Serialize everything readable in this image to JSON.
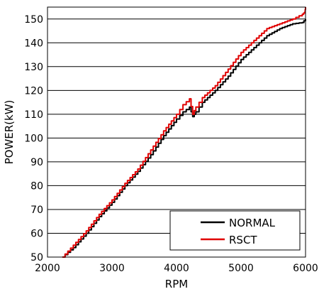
{
  "chart_data": {
    "type": "line",
    "title": "",
    "xlabel": "RPM",
    "ylabel": "POWER(kW)",
    "xlim": [
      2000,
      6000
    ],
    "ylim": [
      50,
      155
    ],
    "xticks": [
      2000,
      3000,
      4000,
      5000,
      6000
    ],
    "yticks": [
      50,
      60,
      70,
      80,
      90,
      100,
      110,
      120,
      130,
      140,
      150
    ],
    "grid": "horizontal",
    "legend_position": "bottom-right",
    "series": [
      {
        "name": "NORMAL",
        "color": "#000000",
        "x": [
          2230,
          2400,
          2600,
          2800,
          3000,
          3200,
          3400,
          3600,
          3800,
          4000,
          4100,
          4200,
          4250,
          4300,
          4400,
          4600,
          4800,
          5000,
          5200,
          5400,
          5600,
          5800,
          5950,
          6000
        ],
        "y": [
          50,
          54,
          60,
          67,
          73,
          80,
          86,
          93,
          101,
          108,
          111,
          113,
          109,
          111,
          115,
          120,
          126,
          133,
          138,
          143,
          146,
          148,
          148.5,
          150
        ]
      },
      {
        "name": "RSCT",
        "color": "#e00000",
        "x": [
          2230,
          2400,
          2600,
          2800,
          3000,
          3200,
          3400,
          3600,
          3800,
          4000,
          4100,
          4200,
          4250,
          4300,
          4400,
          4600,
          4800,
          5000,
          5200,
          5400,
          5600,
          5800,
          5950,
          5990,
          6000
        ],
        "y": [
          50,
          55,
          61,
          68,
          74,
          81,
          87,
          95,
          103,
          110,
          114,
          116.5,
          110,
          113,
          117,
          122,
          129,
          136,
          141,
          146,
          148,
          150,
          152,
          153,
          155
        ]
      }
    ]
  }
}
